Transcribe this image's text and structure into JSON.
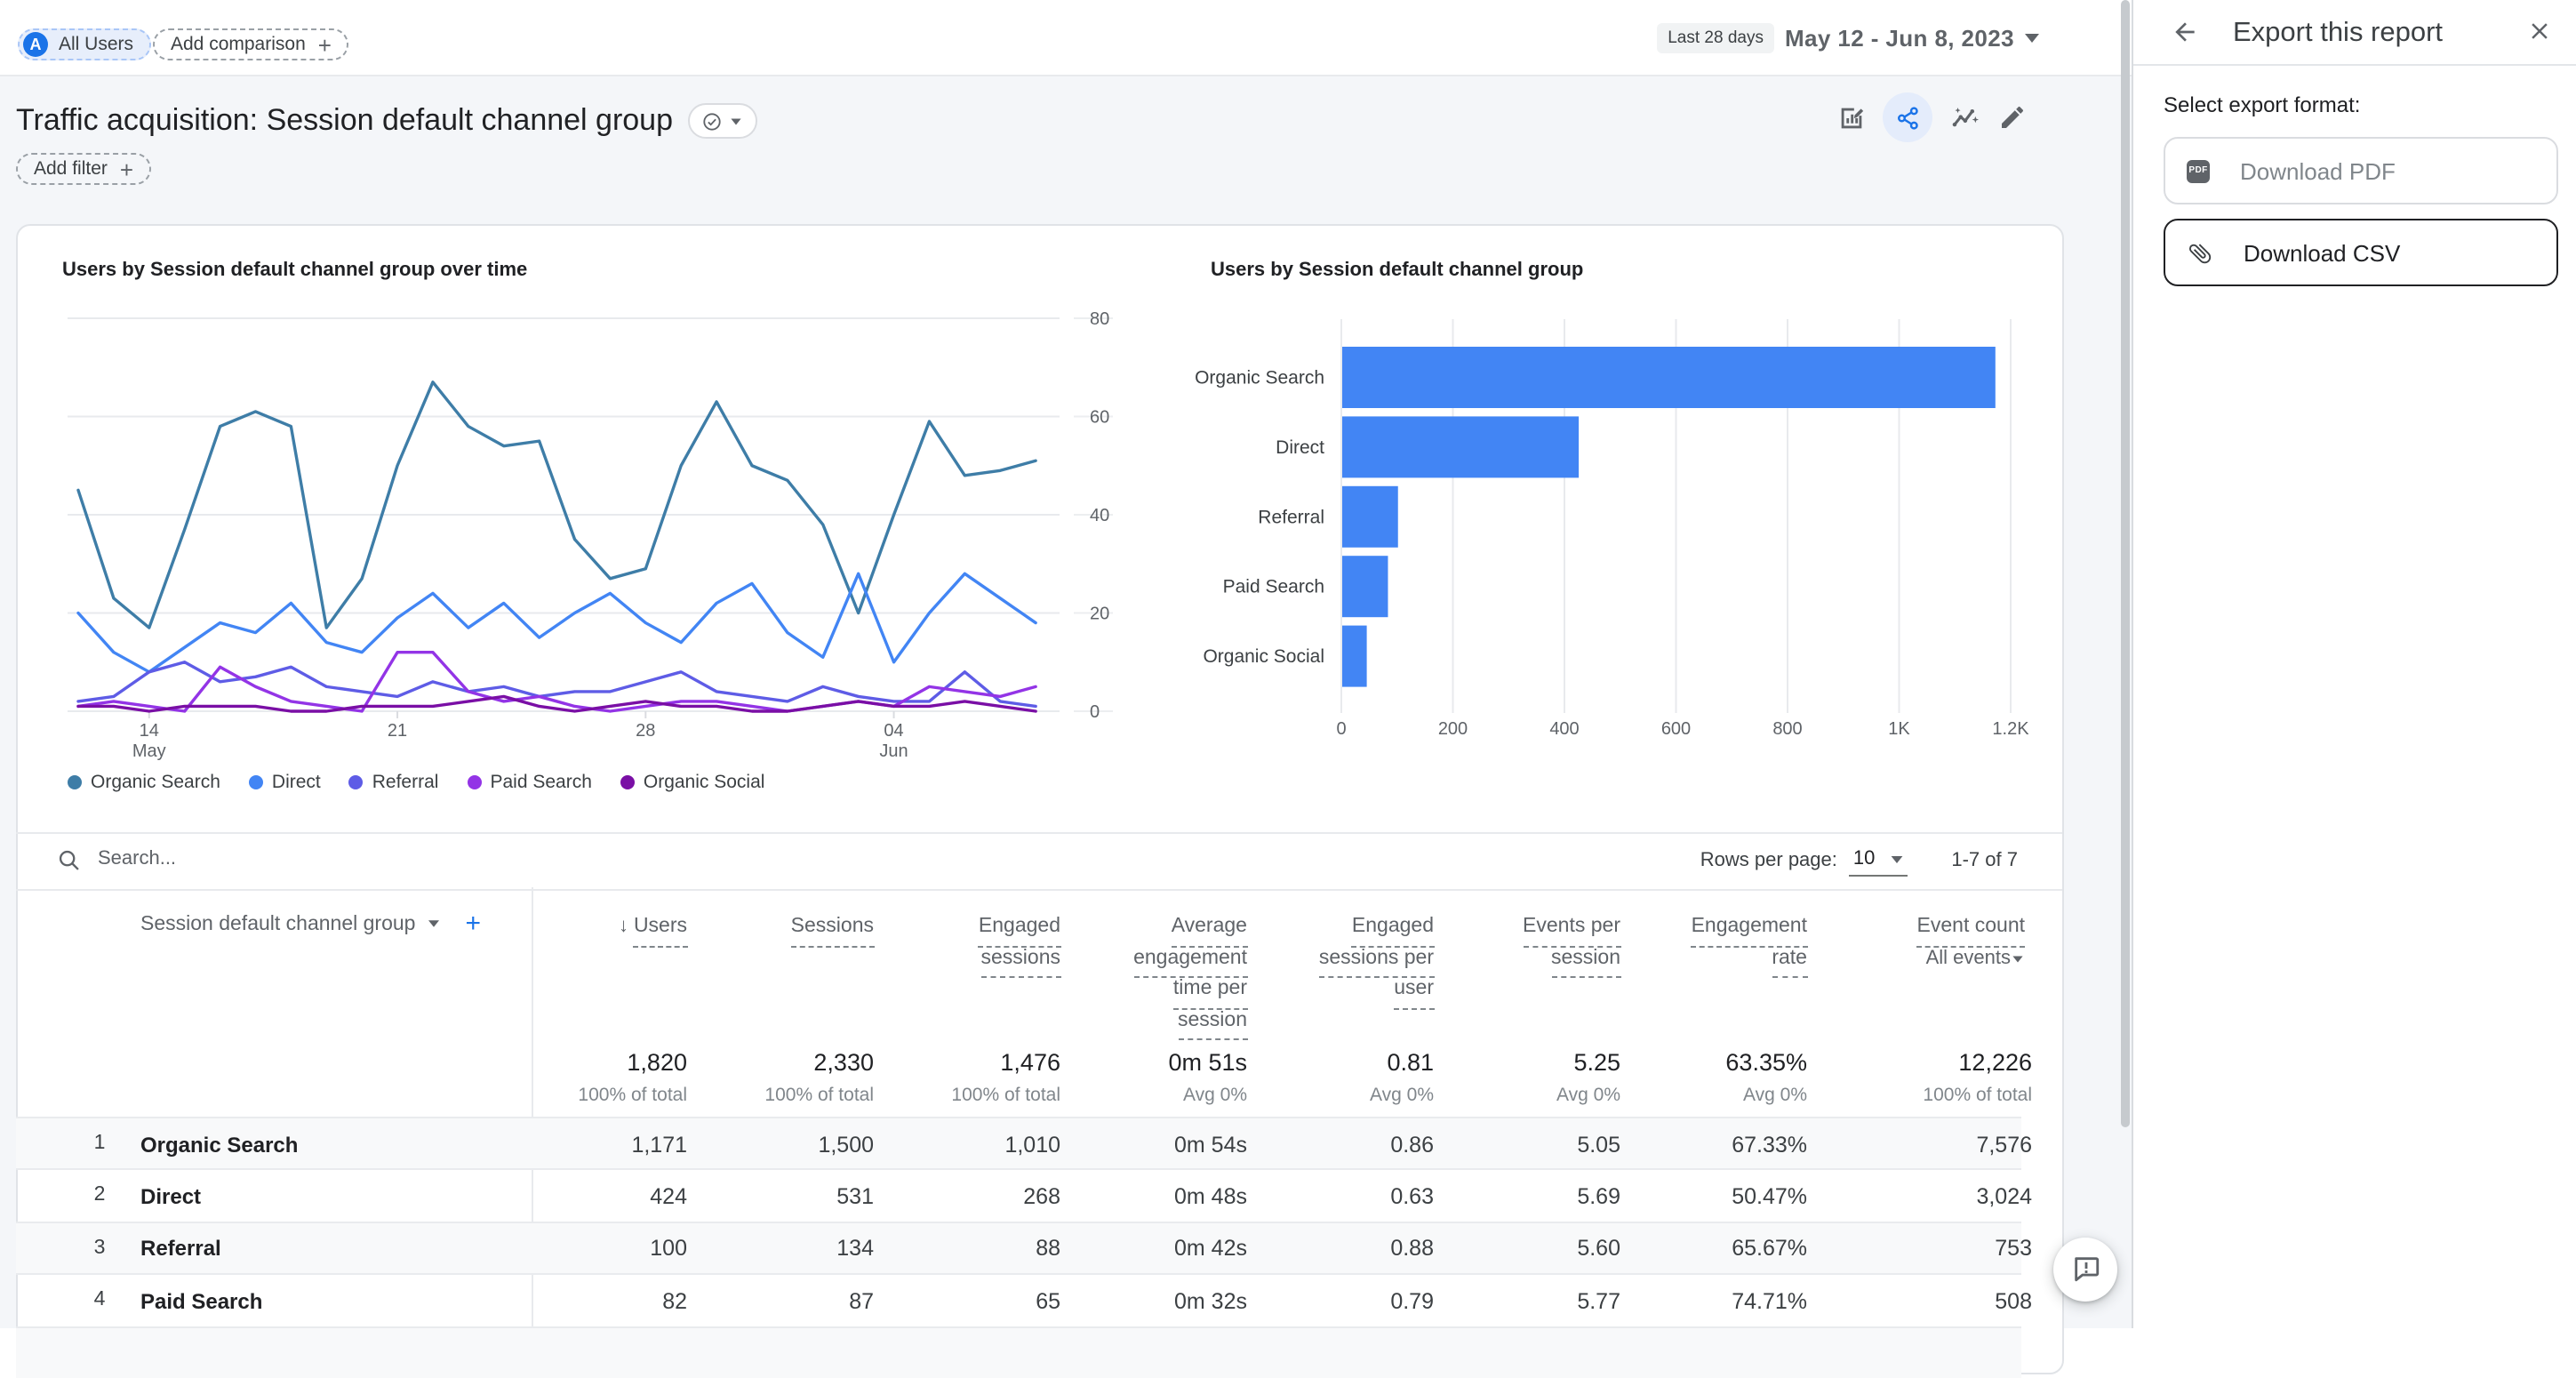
{
  "header": {
    "avatar_letter": "A",
    "all_users_label": "All Users",
    "add_comparison_label": "Add comparison",
    "date_preset": "Last 28 days",
    "date_range": "May 12 - Jun 8, 2023"
  },
  "report": {
    "title": "Traffic acquisition: Session default channel group",
    "add_filter_label": "Add filter"
  },
  "chart_data": [
    {
      "type": "line",
      "title": "Users by Session default channel group over time",
      "ylabel": "",
      "ylim": [
        0,
        80
      ],
      "yticks": [
        0,
        20,
        40,
        60,
        80
      ],
      "x_ticks": [
        {
          "pos": 2,
          "line1": "14",
          "line2": "May"
        },
        {
          "pos": 9,
          "line1": "21",
          "line2": ""
        },
        {
          "pos": 16,
          "line1": "28",
          "line2": ""
        },
        {
          "pos": 23,
          "line1": "04",
          "line2": "Jun"
        }
      ],
      "n_points": 28,
      "series": [
        {
          "name": "Organic Search",
          "color": "#3e7da7",
          "values": [
            45,
            23,
            17,
            37,
            58,
            61,
            58,
            17,
            27,
            50,
            67,
            58,
            54,
            55,
            35,
            27,
            29,
            50,
            63,
            50,
            47,
            38,
            20,
            40,
            59,
            48,
            49,
            51
          ]
        },
        {
          "name": "Direct",
          "color": "#4285f4",
          "values": [
            20,
            12,
            8,
            13,
            18,
            16,
            22,
            14,
            12,
            19,
            24,
            17,
            22,
            15,
            20,
            24,
            18,
            14,
            22,
            26,
            16,
            11,
            28,
            10,
            20,
            28,
            23,
            18
          ]
        },
        {
          "name": "Referral",
          "color": "#5e5ce6",
          "values": [
            2,
            3,
            8,
            10,
            6,
            7,
            9,
            5,
            4,
            3,
            6,
            4,
            5,
            3,
            4,
            4,
            6,
            8,
            4,
            3,
            2,
            5,
            3,
            2,
            2,
            8,
            2,
            1
          ]
        },
        {
          "name": "Paid Search",
          "color": "#9334e6",
          "values": [
            1,
            2,
            1,
            0,
            9,
            5,
            2,
            1,
            0,
            12,
            12,
            4,
            2,
            3,
            1,
            0,
            1,
            2,
            2,
            1,
            0,
            1,
            2,
            1,
            5,
            4,
            3,
            5
          ]
        },
        {
          "name": "Organic Social",
          "color": "#7a0fa5",
          "values": [
            1,
            1,
            0,
            1,
            1,
            1,
            0,
            0,
            1,
            1,
            1,
            2,
            3,
            1,
            0,
            1,
            2,
            1,
            1,
            0,
            0,
            1,
            2,
            1,
            1,
            2,
            1,
            0
          ]
        }
      ],
      "legend_position": "bottom",
      "grid": true
    },
    {
      "type": "bar",
      "title": "Users by Session default channel group",
      "orientation": "horizontal",
      "categories": [
        "Organic Search",
        "Direct",
        "Referral",
        "Paid Search",
        "Organic Social"
      ],
      "values": [
        1171,
        424,
        100,
        82,
        44
      ],
      "bar_color": "#4285f4",
      "xlim": [
        0,
        1260
      ],
      "x_ticks": [
        "0",
        "200",
        "400",
        "600",
        "800",
        "1K",
        "1.2K"
      ],
      "x_tick_values": [
        0,
        200,
        400,
        600,
        800,
        1000,
        1200
      ],
      "grid": true
    }
  ],
  "table": {
    "search_placeholder": "Search...",
    "rows_per_page_label": "Rows per page:",
    "rows_per_page_value": "10",
    "pagination": "1-7 of 7",
    "dimension_header": "Session default channel group",
    "columns": [
      {
        "label": "Users",
        "sorted": true
      },
      {
        "label": "Sessions"
      },
      {
        "label": "Engaged sessions"
      },
      {
        "label": "Average engagement time per session"
      },
      {
        "label": "Engaged sessions per user"
      },
      {
        "label": "Events per session"
      },
      {
        "label": "Engagement rate"
      },
      {
        "label": "Event count",
        "sub": "All events"
      }
    ],
    "totals": {
      "values": [
        "1,820",
        "2,330",
        "1,476",
        "0m 51s",
        "0.81",
        "5.25",
        "63.35%",
        "12,226"
      ],
      "subs": [
        "100% of total",
        "100% of total",
        "100% of total",
        "Avg 0%",
        "Avg 0%",
        "Avg 0%",
        "Avg 0%",
        "100% of total"
      ]
    },
    "rows": [
      {
        "num": "1",
        "channel": "Organic Search",
        "values": [
          "1,171",
          "1,500",
          "1,010",
          "0m 54s",
          "0.86",
          "5.05",
          "67.33%",
          "7,576"
        ]
      },
      {
        "num": "2",
        "channel": "Direct",
        "values": [
          "424",
          "531",
          "268",
          "0m 48s",
          "0.63",
          "5.69",
          "50.47%",
          "3,024"
        ]
      },
      {
        "num": "3",
        "channel": "Referral",
        "values": [
          "100",
          "134",
          "88",
          "0m 42s",
          "0.88",
          "5.60",
          "65.67%",
          "753"
        ]
      },
      {
        "num": "4",
        "channel": "Paid Search",
        "values": [
          "82",
          "87",
          "65",
          "0m 32s",
          "0.79",
          "5.77",
          "74.71%",
          "508"
        ]
      }
    ]
  },
  "export_panel": {
    "title": "Export this report",
    "select_label": "Select export format:",
    "pdf_label": "Download PDF",
    "pdf_icon_text": "PDF",
    "csv_label": "Download CSV"
  },
  "colors": {
    "accent_blue": "#1a73e8",
    "bar_blue": "#4285f4",
    "content_bg": "#f4f6f9",
    "icon_gray": "#5f6368"
  }
}
